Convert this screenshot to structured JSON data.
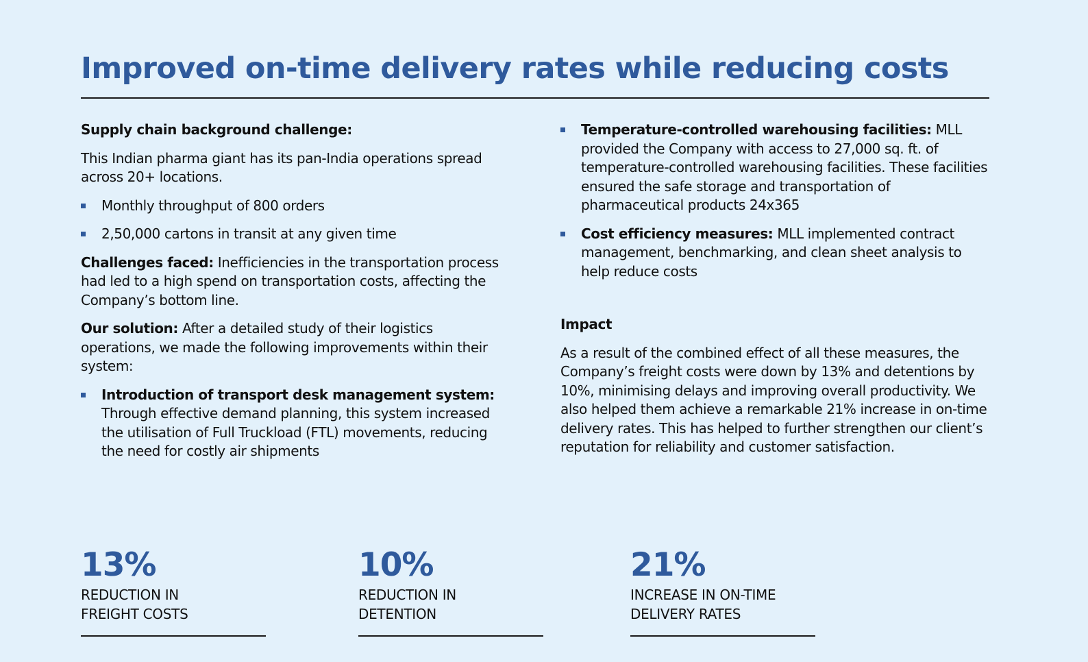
{
  "title": "Improved on-time delivery rates while reducing costs",
  "left": {
    "heading": "Supply chain background challenge:",
    "intro": "This Indian pharma giant has its pan-India operations spread across 20+ locations.",
    "facts": [
      "Monthly throughput of 800 orders",
      "2,50,000 cartons in transit at any given time"
    ],
    "challenges_label": "Challenges faced:",
    "challenges_text": " Inefficiencies in the transportation process had led to a high spend on transportation costs, affecting the Company’s bottom line.",
    "solution_label": "Our solution:",
    "solution_text": " After a detailed study of their logistics operations, we made the following improvements within their system:",
    "improvement_label": "Introduction of transport desk management system:",
    "improvement_text": " Through effective demand planning, this system increased the utilisation of Full Truckload (FTL) movements, reducing the need for costly air shipments"
  },
  "right": {
    "improvements": [
      {
        "label": "Temperature-controlled warehousing facilities:",
        "text": " MLL provided the Company with access to 27,000 sq. ft. of temperature-controlled warehousing facilities. These facilities ensured the safe storage and transportation of pharmaceutical products 24x365"
      },
      {
        "label": "Cost efficiency measures:",
        "text": " MLL implemented contract management, benchmarking, and clean sheet analysis to help reduce costs"
      }
    ],
    "impact_heading": "Impact",
    "impact_text": "As a result of the combined effect of all these measures, the Company’s freight costs were down by 13% and detentions by 10%, minimising delays and improving overall productivity. We also helped them achieve a remarkable 21% increase in on-time delivery rates. This has helped to further strengthen our client’s reputation for reliability and customer satisfaction."
  },
  "stats": [
    {
      "value": "13%",
      "label": "REDUCTION IN\nFREIGHT COSTS"
    },
    {
      "value": "10%",
      "label": "REDUCTION IN\nDETENTION"
    },
    {
      "value": "21%",
      "label": "INCREASE IN ON-TIME\nDELIVERY RATES"
    }
  ],
  "colors": {
    "background": "#e3f1fb",
    "accent": "#2f5a9c",
    "text": "#111111"
  }
}
